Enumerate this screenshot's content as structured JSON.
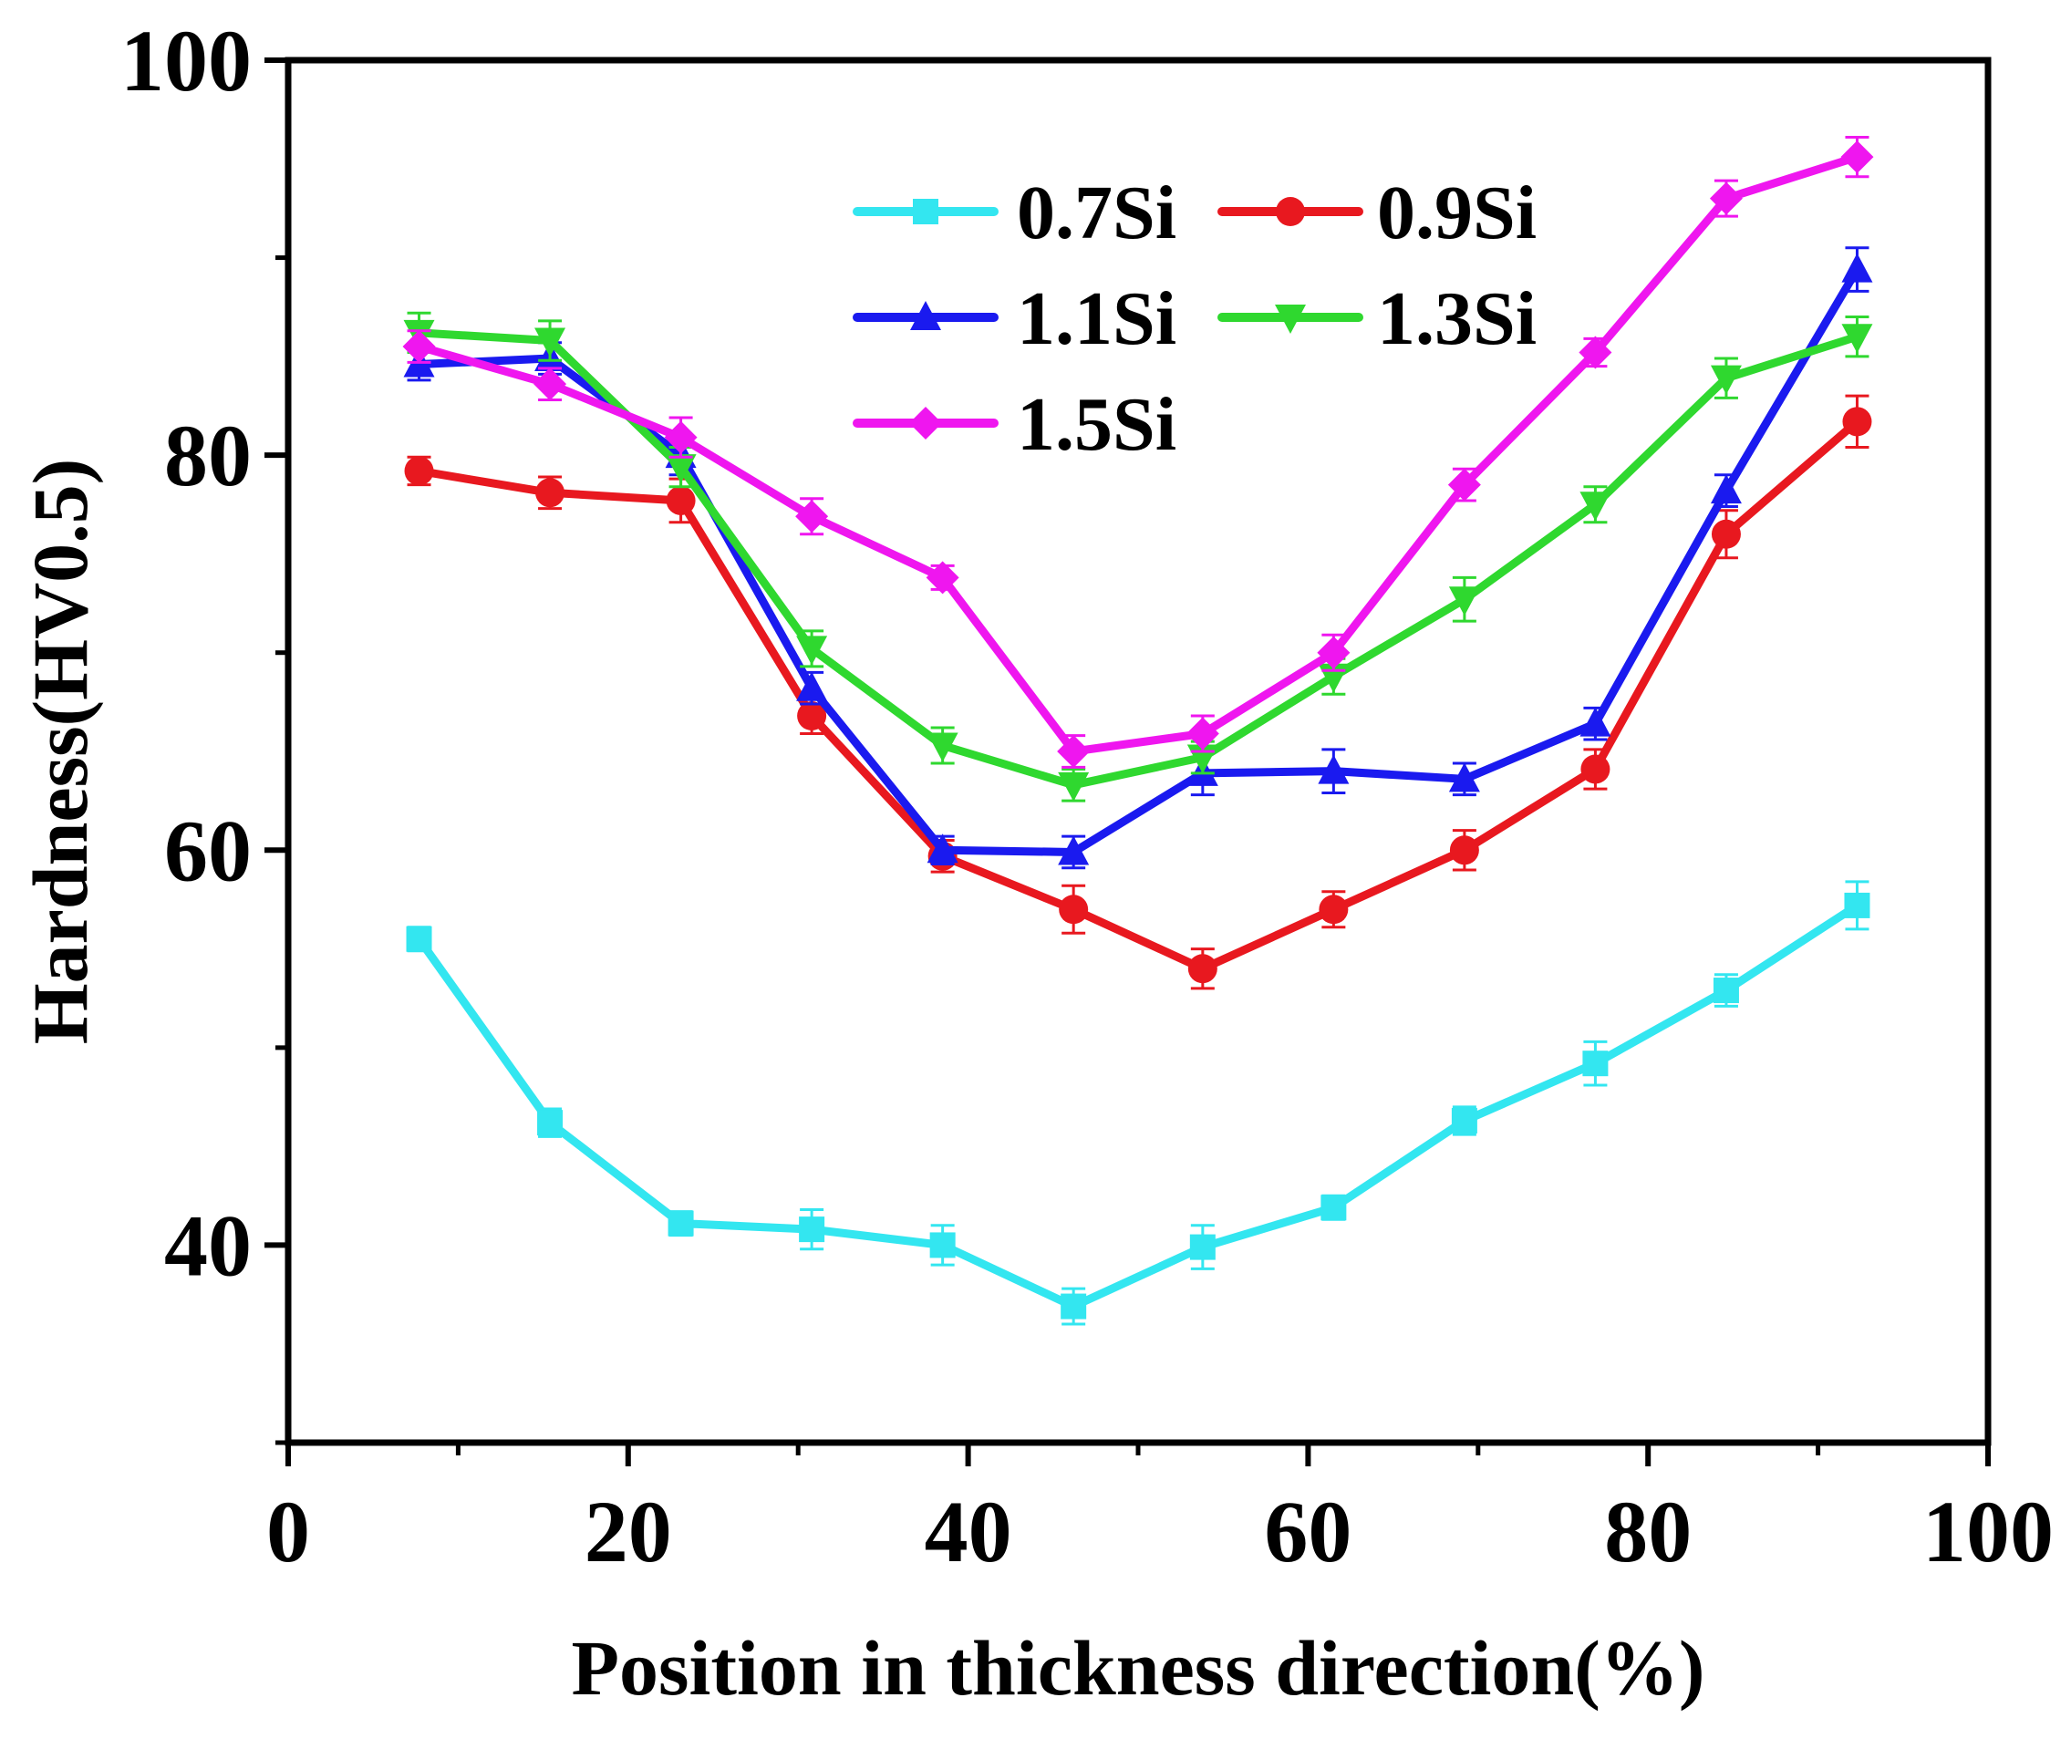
{
  "chart_data": {
    "type": "line",
    "title": "",
    "xlabel": "Position in thickness direction(%)",
    "ylabel": "Hardness(HV0.5)",
    "xlim": [
      0,
      100
    ],
    "ylim": [
      30,
      100
    ],
    "x_ticks": [
      0,
      20,
      40,
      60,
      80,
      100
    ],
    "y_ticks": [
      40,
      60,
      80,
      100
    ],
    "grid": false,
    "legend_position": "top-right",
    "x": [
      7.7,
      15.4,
      23.1,
      30.8,
      38.5,
      46.2,
      53.8,
      61.5,
      69.2,
      76.9,
      84.6,
      92.3
    ],
    "series": [
      {
        "name": "0.7Si",
        "color": "#33e6f0",
        "marker": "square",
        "values": [
          55.5,
          46.2,
          41.1,
          40.8,
          40.0,
          36.9,
          39.9,
          41.9,
          46.3,
          49.2,
          52.9,
          57.2
        ],
        "errors": [
          0.6,
          0.7,
          0.6,
          1.0,
          1.0,
          0.9,
          1.1,
          0.6,
          0.7,
          1.1,
          0.8,
          1.2
        ]
      },
      {
        "name": "0.9Si",
        "color": "#e8181f",
        "marker": "circle",
        "values": [
          79.2,
          78.1,
          77.7,
          66.8,
          59.7,
          57.0,
          54.0,
          57.0,
          60.0,
          64.1,
          76.0,
          81.7
        ],
        "errors": [
          0.7,
          0.8,
          1.1,
          0.9,
          0.8,
          1.2,
          1.0,
          0.9,
          1.0,
          1.0,
          1.2,
          1.3
        ]
      },
      {
        "name": "1.1Si",
        "color": "#1a1aef",
        "marker": "triangle-up",
        "values": [
          84.6,
          84.9,
          80.0,
          68.2,
          60.0,
          59.9,
          63.9,
          64.0,
          63.6,
          66.4,
          78.2,
          89.4
        ],
        "errors": [
          0.8,
          0.8,
          1.0,
          0.8,
          0.7,
          0.8,
          1.1,
          1.1,
          0.8,
          0.8,
          0.8,
          1.1
        ]
      },
      {
        "name": "1.3Si",
        "color": "#2fd82f",
        "marker": "triangle-down",
        "values": [
          86.2,
          85.8,
          79.4,
          70.2,
          65.3,
          63.3,
          64.7,
          68.8,
          72.7,
          77.5,
          83.9,
          86.0
        ],
        "errors": [
          1.0,
          1.0,
          1.0,
          0.9,
          0.9,
          0.8,
          0.8,
          0.9,
          1.1,
          0.9,
          1.0,
          1.0
        ]
      },
      {
        "name": "1.5Si",
        "color": "#ef16ef",
        "marker": "diamond",
        "values": [
          85.5,
          83.6,
          80.9,
          76.9,
          73.8,
          65.0,
          65.9,
          70.0,
          78.5,
          85.2,
          93.0,
          95.1
        ],
        "errors": [
          0.8,
          0.8,
          1.0,
          0.9,
          0.6,
          0.8,
          0.9,
          0.9,
          0.8,
          0.7,
          0.9,
          1.0
        ]
      }
    ]
  }
}
